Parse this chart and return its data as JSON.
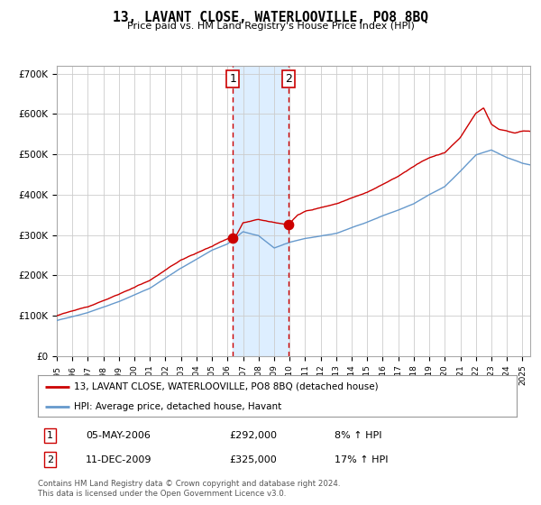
{
  "title": "13, LAVANT CLOSE, WATERLOOVILLE, PO8 8BQ",
  "subtitle": "Price paid vs. HM Land Registry's House Price Index (HPI)",
  "legend_line1": "13, LAVANT CLOSE, WATERLOOVILLE, PO8 8BQ (detached house)",
  "legend_line2": "HPI: Average price, detached house, Havant",
  "transaction1_date": "05-MAY-2006",
  "transaction1_price": 292000,
  "transaction1_hpi": "8% ↑ HPI",
  "transaction1_x": 2006.34,
  "transaction2_date": "11-DEC-2009",
  "transaction2_price": 325000,
  "transaction2_hpi": "17% ↑ HPI",
  "transaction2_x": 2009.94,
  "hpi_color": "#6699cc",
  "price_color": "#cc0000",
  "marker_color": "#cc0000",
  "shade_color": "#ddeeff",
  "grid_color": "#cccccc",
  "bg_color": "#ffffff",
  "footnote1": "Contains HM Land Registry data © Crown copyright and database right 2024.",
  "footnote2": "This data is licensed under the Open Government Licence v3.0.",
  "ylim": [
    0,
    720000
  ],
  "xlim_start": 1995.0,
  "xlim_end": 2025.5,
  "hpi_knot_years": [
    1995,
    1997,
    1999,
    2001,
    2003,
    2005,
    2006,
    2007,
    2008,
    2009,
    2010,
    2011,
    2012,
    2013,
    2014,
    2015,
    2016,
    2017,
    2018,
    2019,
    2020,
    2021,
    2022,
    2023,
    2024,
    2025,
    2026
  ],
  "hpi_knot_vals": [
    88000,
    108000,
    135000,
    168000,
    218000,
    262000,
    278000,
    308000,
    298000,
    268000,
    282000,
    292000,
    298000,
    304000,
    318000,
    332000,
    348000,
    362000,
    378000,
    400000,
    420000,
    458000,
    498000,
    510000,
    492000,
    478000,
    470000
  ],
  "price_knot_years": [
    1995,
    1997,
    1999,
    2001,
    2003,
    2005,
    2006,
    2006.5,
    2007,
    2008,
    2009,
    2009.94,
    2010.5,
    2011,
    2012,
    2013,
    2014,
    2015,
    2016,
    2017,
    2018,
    2019,
    2020,
    2021,
    2022,
    2022.5,
    2023,
    2023.5,
    2024,
    2024.5,
    2025,
    2026
  ],
  "price_knot_vals": [
    100000,
    122000,
    152000,
    188000,
    238000,
    272000,
    292000,
    295000,
    330000,
    338000,
    330000,
    325000,
    348000,
    358000,
    368000,
    378000,
    392000,
    405000,
    425000,
    445000,
    470000,
    492000,
    505000,
    542000,
    602000,
    615000,
    575000,
    562000,
    558000,
    552000,
    558000,
    555000
  ]
}
